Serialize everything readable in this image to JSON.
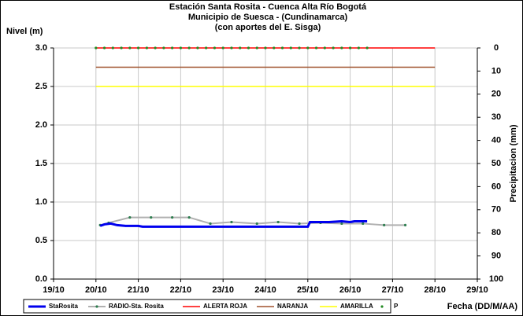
{
  "chart_data": {
    "type": "line",
    "title": [
      "Estación Santa Rosita - Cuenca Alta Río Bogotá",
      "Municipio de Suesca - (Cundinamarca)",
      "(con aportes del  E. Sisga)"
    ],
    "y_label": "Nivel (m)",
    "y2_label": "Precipitacion (mm)",
    "x_label": "Fecha (DD/M/AA)",
    "xlim": [
      19,
      29
    ],
    "xticks": [
      {
        "value": 19,
        "label": "19/10"
      },
      {
        "value": 20,
        "label": "20/10"
      },
      {
        "value": 21,
        "label": "21/10"
      },
      {
        "value": 22,
        "label": "22/10"
      },
      {
        "value": 23,
        "label": "23/10"
      },
      {
        "value": 24,
        "label": "24/10"
      },
      {
        "value": 25,
        "label": "25/10"
      },
      {
        "value": 26,
        "label": "26/10"
      },
      {
        "value": 27,
        "label": "27/10"
      },
      {
        "value": 28,
        "label": "28/10"
      },
      {
        "value": 29,
        "label": "29/10"
      }
    ],
    "ylim": [
      0,
      3
    ],
    "yticks": [
      {
        "value": 0,
        "label": "0.0"
      },
      0.5,
      {
        "value": 1,
        "label": "1.0"
      },
      1.5,
      {
        "value": 2,
        "label": "2.0"
      },
      2.5,
      {
        "value": 3,
        "label": "3.0"
      }
    ],
    "y2lim": [
      0,
      100
    ],
    "y2_inverted": true,
    "y2ticks": [
      0,
      10,
      20,
      30,
      40,
      50,
      60,
      70,
      80,
      90,
      100
    ],
    "grid": true,
    "legend": "bottom",
    "series": [
      {
        "name": "StaRosita",
        "color": "#0000ee",
        "width": 3,
        "marker": false,
        "x": [
          20.1,
          20.2,
          20.35,
          20.5,
          20.7,
          21.0,
          21.1,
          25.0,
          25.05,
          25.5,
          25.8,
          26.0,
          26.1,
          26.4
        ],
        "values": [
          0.69,
          0.71,
          0.72,
          0.7,
          0.69,
          0.69,
          0.68,
          0.68,
          0.74,
          0.74,
          0.75,
          0.74,
          0.75,
          0.75
        ]
      },
      {
        "name": "RADIO-Sta. Rosita",
        "color": "#b0b0b0",
        "marker_color": "#2e7d4f",
        "width": 2,
        "marker": true,
        "x": [
          20.1,
          20.3,
          20.8,
          21.3,
          21.8,
          22.2,
          22.7,
          23.2,
          23.8,
          24.3,
          24.8,
          25.3,
          25.8,
          26.3,
          26.8,
          27.3
        ],
        "values": [
          0.7,
          0.73,
          0.8,
          0.8,
          0.8,
          0.8,
          0.72,
          0.74,
          0.72,
          0.74,
          0.72,
          0.73,
          0.72,
          0.72,
          0.7,
          0.7
        ]
      },
      {
        "name": "ALERTA ROJA",
        "color": "#ff0000",
        "width": 1.5,
        "marker": false,
        "x": [
          20,
          28
        ],
        "values": [
          3,
          3
        ]
      },
      {
        "name": "NARANJA",
        "color": "#a0522d",
        "width": 1.5,
        "marker": false,
        "x": [
          20,
          28
        ],
        "values": [
          2.75,
          2.75
        ]
      },
      {
        "name": "AMARILLA",
        "color": "#ffff00",
        "width": 1.5,
        "marker": false,
        "x": [
          20,
          28
        ],
        "values": [
          2.5,
          2.5
        ]
      },
      {
        "name": "P",
        "color": "#228b22",
        "width": 0,
        "marker": true,
        "axis": "y2",
        "x": [
          20.0,
          20.2,
          20.4,
          20.6,
          20.8,
          21.0,
          21.2,
          21.4,
          21.6,
          21.8,
          22.0,
          22.2,
          22.4,
          22.6,
          22.8,
          23.0,
          23.2,
          23.4,
          23.6,
          23.8,
          24.0,
          24.2,
          24.4,
          24.6,
          24.8,
          25.0,
          25.2,
          25.4,
          25.6,
          25.8,
          26.0,
          26.2,
          26.4
        ],
        "values": [
          0,
          0,
          0,
          0,
          0,
          0,
          0,
          0,
          0,
          0,
          0,
          0,
          0,
          0,
          0,
          0,
          0,
          0,
          0,
          0,
          0,
          0,
          0,
          0,
          0,
          0,
          0,
          0,
          0,
          0,
          0,
          0,
          0
        ]
      }
    ]
  }
}
